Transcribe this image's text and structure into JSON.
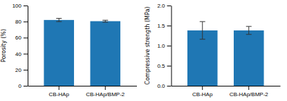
{
  "chart_data": [
    {
      "type": "bar",
      "categories": [
        "CB-HAp",
        "CB-HAp/BMP-2"
      ],
      "values": [
        82.0,
        80.5
      ],
      "errors": [
        2.0,
        1.2
      ],
      "ylabel": "Porosity (%)",
      "ylim": [
        0,
        100
      ],
      "yticks": [
        0,
        20,
        40,
        60,
        80,
        100
      ]
    },
    {
      "type": "bar",
      "categories": [
        "CB-HAp",
        "CB-HAp/BMP-2"
      ],
      "values": [
        1.38,
        1.38
      ],
      "errors": [
        0.22,
        0.1
      ],
      "ylabel": "Compressive strength (MPa)",
      "ylim": [
        0.0,
        2.0
      ],
      "yticks": [
        {
          "value": 0,
          "label": "0.0"
        },
        0.5,
        {
          "value": 1,
          "label": "1.0"
        },
        1.5,
        {
          "value": 2,
          "label": "2.0"
        }
      ]
    }
  ]
}
